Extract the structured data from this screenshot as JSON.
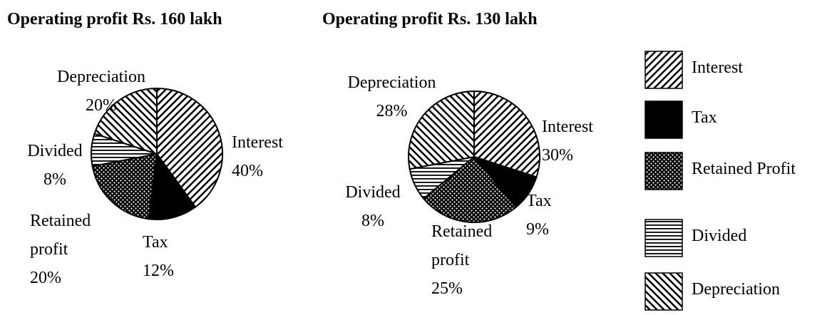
{
  "chart_data": [
    {
      "type": "pie",
      "title": "Operating profit Rs. 160 lakh",
      "categories": [
        "Interest",
        "Tax",
        "Retained profit",
        "Divided",
        "Depreciation"
      ],
      "values": [
        40,
        12,
        20,
        8,
        20
      ],
      "value_labels": [
        "40%",
        "12%",
        "20%",
        "8%",
        "20%"
      ]
    },
    {
      "type": "pie",
      "title": "Operating profit Rs. 130 lakh",
      "categories": [
        "Interest",
        "Tax",
        "Retained profit",
        "Divided",
        "Depreciation"
      ],
      "values": [
        30,
        9,
        25,
        8,
        28
      ],
      "value_labels": [
        "30%",
        "9%",
        "25%",
        "8%",
        "28%"
      ]
    }
  ],
  "legend": {
    "entries": [
      "Interest",
      "Tax",
      "Retained Profit",
      "Divided",
      "Depreciation"
    ],
    "patterns": [
      "diag-right",
      "solid",
      "dots",
      "horizontal",
      "diag-left"
    ]
  }
}
